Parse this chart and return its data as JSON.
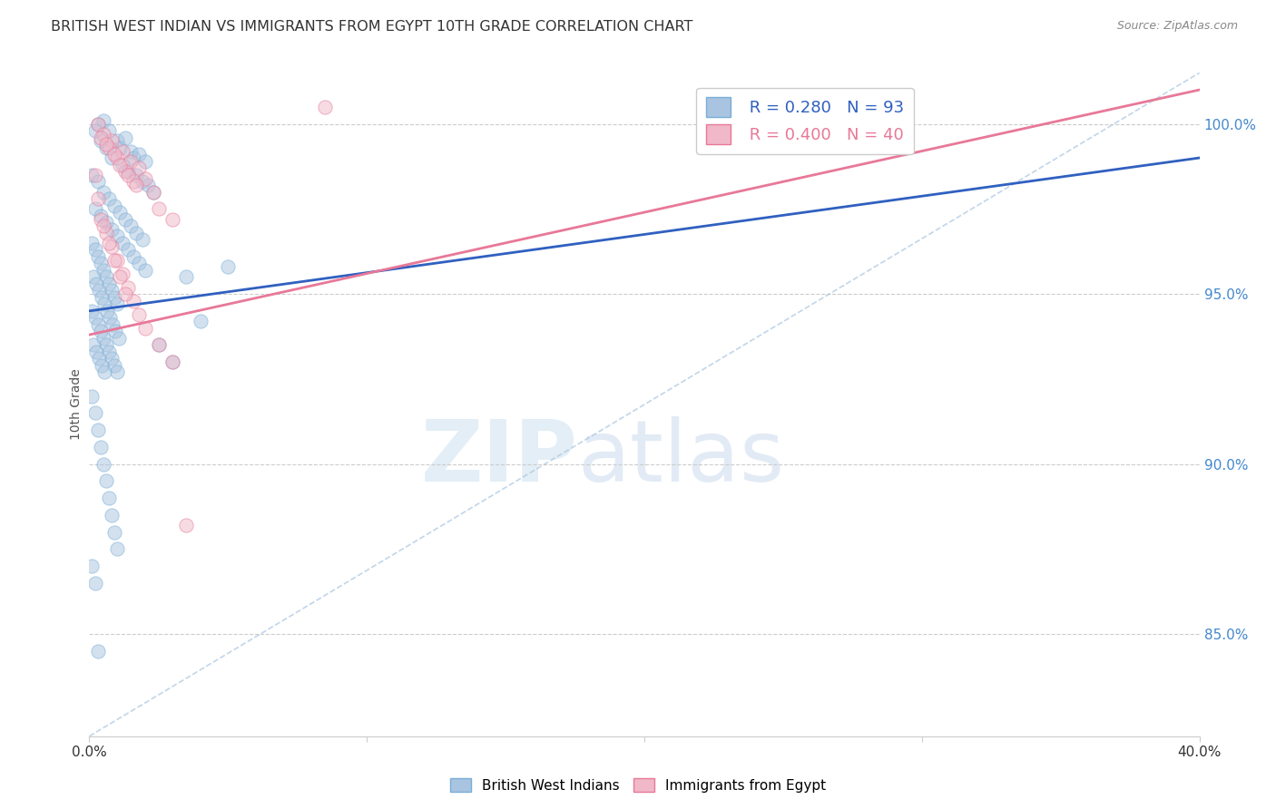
{
  "title": "BRITISH WEST INDIAN VS IMMIGRANTS FROM EGYPT 10TH GRADE CORRELATION CHART",
  "source": "Source: ZipAtlas.com",
  "ylabel": "10th Grade",
  "y_ticks": [
    85.0,
    90.0,
    95.0,
    100.0
  ],
  "y_tick_labels": [
    "85.0%",
    "90.0%",
    "95.0%",
    "100.0%"
  ],
  "x_range": [
    0.0,
    40.0
  ],
  "y_range": [
    82.0,
    101.5
  ],
  "blue_color": "#a8c4e0",
  "blue_edge": "#7aaed6",
  "pink_color": "#f0b8c8",
  "pink_edge": "#e87898",
  "blue_line_color": "#3060c0",
  "blue_dash_color": "#a8c4e0",
  "grid_color": "#cccccc",
  "title_color": "#333333",
  "axis_label_color": "#555555",
  "right_axis_color": "#4488cc",
  "blue_scatter_x": [
    0.3,
    0.5,
    0.7,
    1.0,
    1.1,
    1.3,
    1.5,
    1.6,
    1.8,
    2.0,
    0.2,
    0.4,
    0.6,
    0.8,
    1.2,
    1.4,
    1.7,
    1.9,
    2.1,
    2.3,
    0.1,
    0.3,
    0.5,
    0.7,
    0.9,
    1.1,
    1.3,
    1.5,
    1.7,
    1.9,
    0.2,
    0.4,
    0.6,
    0.8,
    1.0,
    1.2,
    1.4,
    1.6,
    1.8,
    2.0,
    0.1,
    0.2,
    0.3,
    0.4,
    0.5,
    0.6,
    0.7,
    0.8,
    0.9,
    1.0,
    0.15,
    0.25,
    0.35,
    0.45,
    0.55,
    0.65,
    0.75,
    0.85,
    0.95,
    1.05,
    0.1,
    0.2,
    0.3,
    0.4,
    0.5,
    0.6,
    0.7,
    0.8,
    0.9,
    1.0,
    0.15,
    0.25,
    0.35,
    0.45,
    0.55,
    3.5,
    2.5,
    3.0,
    4.0,
    5.0,
    0.1,
    0.2,
    0.3,
    0.4,
    0.5,
    0.6,
    0.7,
    0.8,
    0.9,
    1.0,
    0.1,
    0.2,
    0.3
  ],
  "blue_scatter_y": [
    100.0,
    100.1,
    99.8,
    99.5,
    99.3,
    99.6,
    99.2,
    99.0,
    99.1,
    98.9,
    99.8,
    99.5,
    99.3,
    99.0,
    98.8,
    98.6,
    98.5,
    98.3,
    98.2,
    98.0,
    98.5,
    98.3,
    98.0,
    97.8,
    97.6,
    97.4,
    97.2,
    97.0,
    96.8,
    96.6,
    97.5,
    97.3,
    97.1,
    96.9,
    96.7,
    96.5,
    96.3,
    96.1,
    95.9,
    95.7,
    96.5,
    96.3,
    96.1,
    95.9,
    95.7,
    95.5,
    95.3,
    95.1,
    94.9,
    94.7,
    95.5,
    95.3,
    95.1,
    94.9,
    94.7,
    94.5,
    94.3,
    94.1,
    93.9,
    93.7,
    94.5,
    94.3,
    94.1,
    93.9,
    93.7,
    93.5,
    93.3,
    93.1,
    92.9,
    92.7,
    93.5,
    93.3,
    93.1,
    92.9,
    92.7,
    95.5,
    93.5,
    93.0,
    94.2,
    95.8,
    92.0,
    91.5,
    91.0,
    90.5,
    90.0,
    89.5,
    89.0,
    88.5,
    88.0,
    87.5,
    87.0,
    86.5,
    84.5
  ],
  "pink_scatter_x": [
    0.3,
    0.8,
    1.2,
    1.5,
    1.8,
    2.0,
    2.3,
    0.5,
    0.7,
    1.0,
    1.3,
    1.6,
    0.4,
    0.9,
    1.1,
    1.4,
    1.7,
    0.6,
    0.3,
    2.5,
    3.0,
    0.2,
    0.4,
    0.6,
    0.8,
    1.0,
    1.2,
    1.4,
    1.6,
    1.8,
    2.0,
    2.5,
    3.0,
    0.5,
    0.7,
    0.9,
    1.1,
    1.3,
    3.5,
    8.5
  ],
  "pink_scatter_y": [
    100.0,
    99.5,
    99.2,
    98.9,
    98.7,
    98.4,
    98.0,
    99.7,
    99.3,
    99.0,
    98.6,
    98.3,
    99.6,
    99.1,
    98.8,
    98.5,
    98.2,
    99.4,
    97.8,
    97.5,
    97.2,
    98.5,
    97.2,
    96.8,
    96.4,
    96.0,
    95.6,
    95.2,
    94.8,
    94.4,
    94.0,
    93.5,
    93.0,
    97.0,
    96.5,
    96.0,
    95.5,
    95.0,
    88.2,
    100.5
  ],
  "blue_line": {
    "x0": 0.0,
    "x1": 40.0,
    "y0": 94.5,
    "y1": 99.0
  },
  "pink_line": {
    "x0": 0.0,
    "x1": 40.0,
    "y0": 93.8,
    "y1": 101.0
  },
  "blue_dash_line": {
    "x0": 0.0,
    "x1": 40.0,
    "y0": 82.0,
    "y1": 101.5
  },
  "marker_size": 120,
  "alpha": 0.5
}
